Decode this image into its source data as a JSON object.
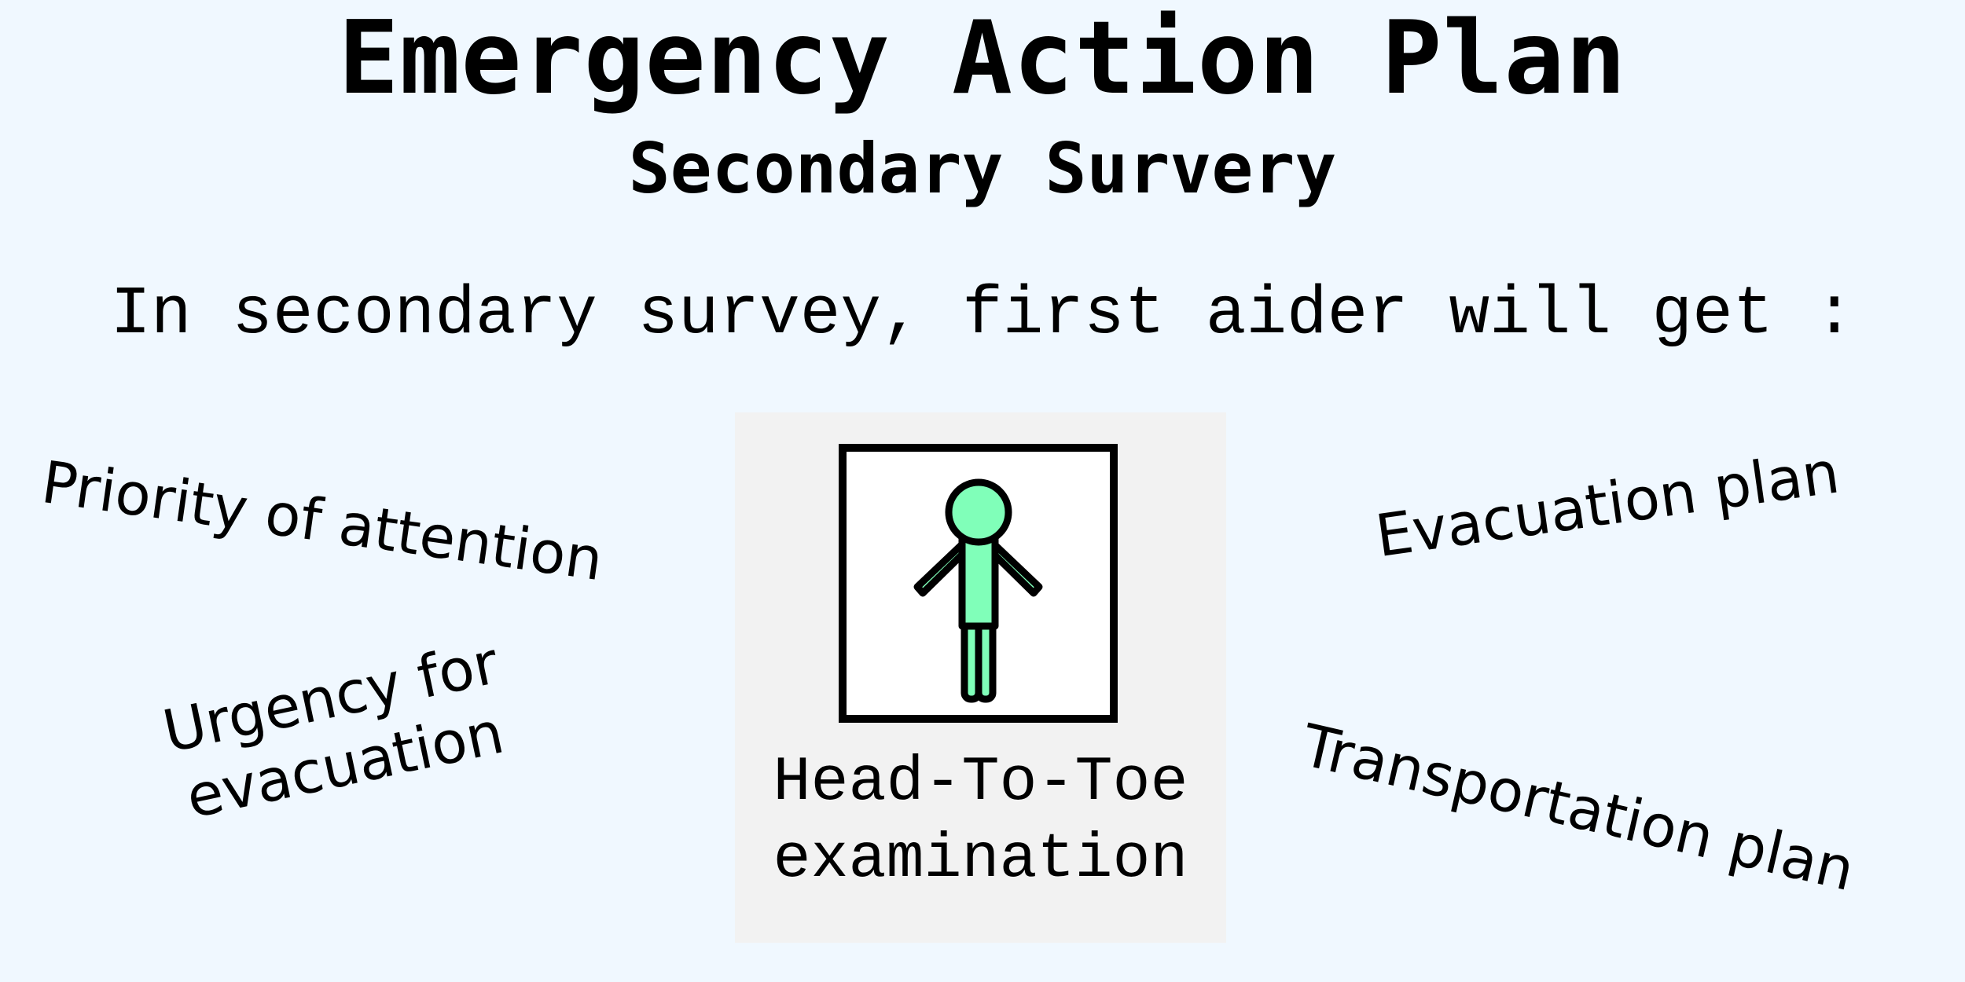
{
  "header": {
    "title": "Emergency Action Plan",
    "subtitle": "Secondary Survery"
  },
  "intro_text": "In secondary survey, first aider will get :",
  "items": {
    "priority": "Priority of attention",
    "evacuation_plan": "Evacuation plan",
    "urgency_line1": "Urgency for",
    "urgency_line2": "evacuation",
    "transportation_plan": "Transportation plan"
  },
  "center": {
    "label_line1": "Head-To-Toe",
    "label_line2": "examination",
    "icon": "person-icon",
    "figure_color": "#80ffb9"
  },
  "colors": {
    "background": "#f0f8ff",
    "panel": "#f2f2f2",
    "text": "#000000"
  }
}
